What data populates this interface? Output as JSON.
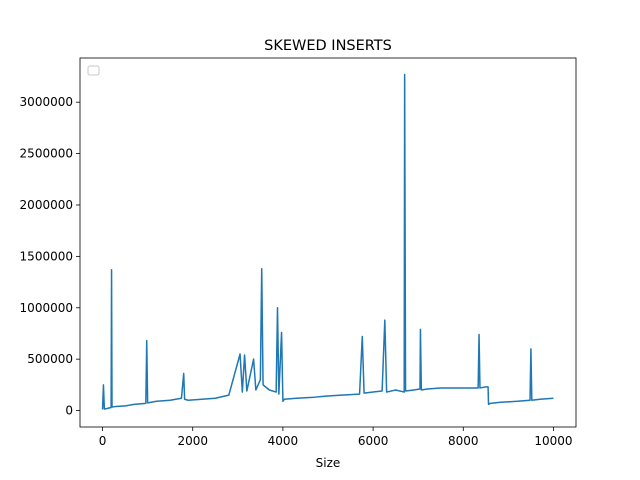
{
  "chart_data": {
    "type": "line",
    "title": "SKEWED INSERTS",
    "xlabel": "Size",
    "ylabel": "",
    "xlim": [
      -500,
      10500
    ],
    "ylim": [
      -160000,
      3430000
    ],
    "x_ticks": [
      0,
      2000,
      4000,
      6000,
      8000,
      10000
    ],
    "x_tick_labels": [
      "0",
      "2000",
      "4000",
      "6000",
      "8000",
      "10000"
    ],
    "y_ticks": [
      0,
      500000,
      1000000,
      1500000,
      2000000,
      2500000,
      3000000
    ],
    "y_tick_labels": [
      "0",
      "500000",
      "1000000",
      "1500000",
      "2000000",
      "2500000",
      "3000000"
    ],
    "grid": false,
    "legend": {
      "placement": "top-left",
      "entries": []
    },
    "series_color": "#1f77b4",
    "series": [
      {
        "x": [
          0,
          20,
          40,
          100,
          190,
          200,
          210,
          300,
          500,
          700,
          960,
          980,
          1000,
          1200,
          1500,
          1750,
          1800,
          1820,
          1900,
          2200,
          2500,
          2800,
          3050,
          3100,
          3150,
          3200,
          3350,
          3400,
          3500,
          3530,
          3560,
          3700,
          3850,
          3880,
          3910,
          3970,
          4000,
          4030,
          4300,
          4700,
          4950,
          5300,
          5700,
          5760,
          5800,
          6000,
          6200,
          6260,
          6300,
          6500,
          6690,
          6700,
          6720,
          6900,
          7040,
          7050,
          7070,
          7200,
          7500,
          7800,
          8100,
          8330,
          8350,
          8370,
          8500,
          8550,
          8560,
          8600,
          8800,
          9200,
          9480,
          9500,
          9520,
          9700,
          10000
        ],
        "values": [
          10000,
          250000,
          15000,
          20000,
          30000,
          1370000,
          35000,
          40000,
          45000,
          60000,
          70000,
          680000,
          75000,
          90000,
          100000,
          120000,
          360000,
          110000,
          100000,
          110000,
          120000,
          150000,
          550000,
          180000,
          540000,
          190000,
          500000,
          200000,
          300000,
          1380000,
          250000,
          200000,
          180000,
          1000000,
          160000,
          760000,
          90000,
          110000,
          120000,
          130000,
          140000,
          150000,
          160000,
          720000,
          170000,
          180000,
          190000,
          880000,
          180000,
          200000,
          180000,
          3270000,
          190000,
          200000,
          210000,
          790000,
          200000,
          210000,
          220000,
          220000,
          220000,
          220000,
          740000,
          220000,
          230000,
          230000,
          60000,
          70000,
          80000,
          90000,
          100000,
          600000,
          100000,
          110000,
          120000
        ]
      }
    ]
  }
}
